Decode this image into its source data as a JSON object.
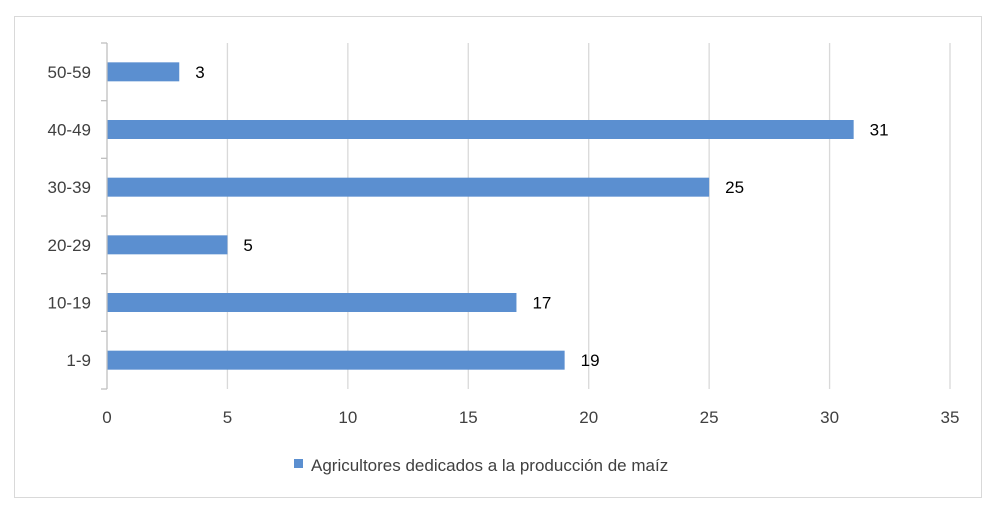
{
  "chart_data": {
    "type": "bar",
    "orientation": "horizontal",
    "categories": [
      "1-9",
      "10-19",
      "20-29",
      "30-39",
      "40-49",
      "50-59"
    ],
    "series": [
      {
        "name": "Agricultores dedicados a la producción de maíz",
        "values": [
          19,
          17,
          5,
          25,
          31,
          3
        ],
        "color": "#5b8fd0"
      }
    ],
    "xlim": [
      0,
      35
    ],
    "xticks": [
      0,
      5,
      10,
      15,
      20,
      25,
      30,
      35
    ],
    "grid": "vertical",
    "legend_position": "bottom",
    "data_labels": true
  }
}
